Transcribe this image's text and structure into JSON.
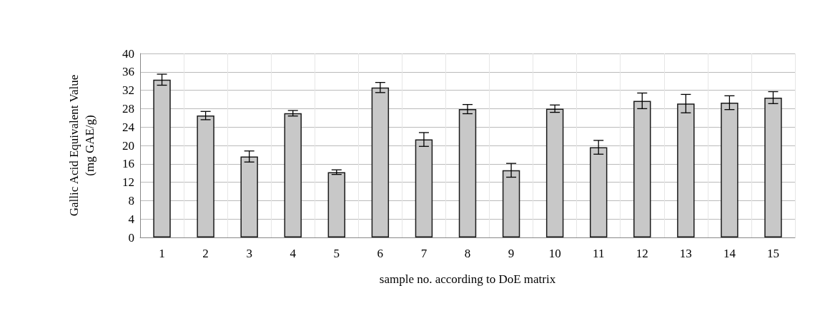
{
  "chart_data": {
    "type": "bar",
    "xlabel": "sample no. according to DoE matrix",
    "ylabel": "Gallic Acid Equivalent Value\n(mg GAE/g)",
    "categories": [
      "1",
      "2",
      "3",
      "4",
      "5",
      "6",
      "7",
      "8",
      "9",
      "10",
      "11",
      "12",
      "13",
      "14",
      "15"
    ],
    "values": [
      34.3,
      26.5,
      17.6,
      27.0,
      14.2,
      32.6,
      21.3,
      27.9,
      14.6,
      28.0,
      19.6,
      29.7,
      29.1,
      29.3,
      30.4
    ],
    "errors": [
      1.2,
      0.9,
      1.2,
      0.6,
      0.5,
      1.1,
      1.5,
      1.0,
      1.5,
      0.8,
      1.5,
      1.7,
      2.0,
      1.5,
      1.3
    ],
    "color": "#c8c8c8",
    "ylim": [
      0,
      40
    ],
    "yticks": [
      0,
      4,
      8,
      12,
      16,
      20,
      24,
      28,
      32,
      36,
      40
    ],
    "grid": true
  }
}
